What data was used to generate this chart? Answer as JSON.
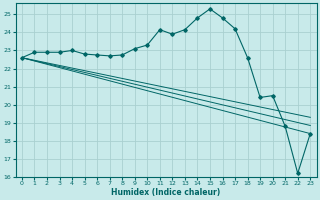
{
  "title": "",
  "xlabel": "Humidex (Indice chaleur)",
  "ylabel": "",
  "bg_color": "#c8eaea",
  "grid_color": "#aad0d0",
  "line_color": "#006666",
  "xlim": [
    -0.5,
    23.5
  ],
  "ylim": [
    16,
    25.6
  ],
  "xticks": [
    0,
    1,
    2,
    3,
    4,
    5,
    6,
    7,
    8,
    9,
    10,
    11,
    12,
    13,
    14,
    15,
    16,
    17,
    18,
    19,
    20,
    21,
    22,
    23
  ],
  "yticks": [
    16,
    17,
    18,
    19,
    20,
    21,
    22,
    23,
    24,
    25
  ],
  "series": [
    {
      "x": [
        0,
        1,
        2,
        3,
        4,
        5,
        6,
        7,
        8,
        9,
        10,
        11,
        12,
        13,
        14,
        15,
        16,
        17,
        18,
        19,
        20,
        21,
        22,
        23
      ],
      "y": [
        22.6,
        22.9,
        22.9,
        22.9,
        23.0,
        22.8,
        22.75,
        22.7,
        22.75,
        23.1,
        23.3,
        24.15,
        23.9,
        24.15,
        24.8,
        25.3,
        24.8,
        24.2,
        22.6,
        20.4,
        20.5,
        18.8,
        16.2,
        18.4
      ],
      "marker": true
    },
    {
      "x": [
        0,
        23
      ],
      "y": [
        22.6,
        18.4
      ],
      "marker": false
    },
    {
      "x": [
        0,
        23
      ],
      "y": [
        22.6,
        18.85
      ],
      "marker": false
    },
    {
      "x": [
        0,
        23
      ],
      "y": [
        22.6,
        19.3
      ],
      "marker": false
    }
  ]
}
